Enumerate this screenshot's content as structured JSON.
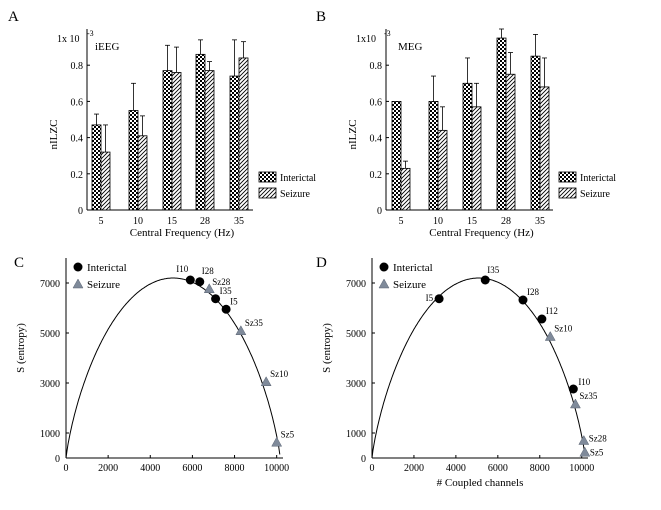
{
  "chart_data": [
    {
      "panel_label": "A",
      "type": "bar",
      "inset_label": "iEEG",
      "y_multiplier_label": "1x 10",
      "y_multiplier_exp": "-3",
      "xlabel": "Central Frequency (Hz)",
      "ylabel": "nILZC",
      "ylim": [
        0,
        1
      ],
      "yticks": [
        "0",
        "0.2",
        "0.4",
        "0.6",
        "0.8"
      ],
      "ytick_values": [
        0,
        0.2,
        0.4,
        0.6,
        0.8
      ],
      "categories": [
        "5",
        "10",
        "15",
        "28",
        "35"
      ],
      "series": [
        {
          "name": "Interictal",
          "values": [
            0.47,
            0.55,
            0.77,
            0.86,
            0.74
          ],
          "errors": [
            0.06,
            0.15,
            0.14,
            0.08,
            0.2
          ]
        },
        {
          "name": "Seizure",
          "values": [
            0.32,
            0.41,
            0.76,
            0.77,
            0.84
          ],
          "errors": [
            0.15,
            0.11,
            0.14,
            0.05,
            0.09
          ]
        }
      ]
    },
    {
      "panel_label": "B",
      "type": "bar",
      "inset_label": "MEG",
      "y_multiplier_label": "1x10",
      "y_multiplier_exp": "-3",
      "xlabel": "Central Frequency (Hz)",
      "ylabel": "nILZC",
      "ylim": [
        0,
        1
      ],
      "yticks": [
        "0",
        "0.2",
        "0.4",
        "0.6",
        "0.8"
      ],
      "ytick_values": [
        0,
        0.2,
        0.4,
        0.6,
        0.8
      ],
      "categories": [
        "5",
        "10",
        "15",
        "28",
        "35"
      ],
      "series": [
        {
          "name": "Interictal",
          "values": [
            0.6,
            0.6,
            0.7,
            0.95,
            0.85
          ],
          "errors": [
            0.0,
            0.14,
            0.14,
            0.05,
            0.12
          ]
        },
        {
          "name": "Seizure",
          "values": [
            0.23,
            0.44,
            0.57,
            0.75,
            0.68
          ],
          "errors": [
            0.04,
            0.13,
            0.13,
            0.12,
            0.16
          ]
        }
      ]
    },
    {
      "panel_label": "C",
      "type": "scatter",
      "xlabel": "",
      "ylabel": "S (entropy)",
      "xlim": [
        0,
        10300
      ],
      "ylim": [
        0,
        8000
      ],
      "xticks": [
        "0",
        "2000",
        "4000",
        "6000",
        "8000",
        "10000"
      ],
      "xtick_values": [
        0,
        2000,
        4000,
        6000,
        8000,
        10000
      ],
      "yticks": [
        "0",
        "1000",
        "3000",
        "5000",
        "7000"
      ],
      "ytick_values": [
        0,
        1000,
        3000,
        5000,
        7000
      ],
      "curve": {
        "n_total": 10170
      },
      "series": [
        {
          "name": "Interictal",
          "marker": "circle",
          "points": [
            {
              "label": "I10",
              "x": 5900,
              "y": 7120
            },
            {
              "label": "I28",
              "x": 6350,
              "y": 7050
            },
            {
              "label": "I35",
              "x": 7100,
              "y": 6370
            },
            {
              "label": "I5",
              "x": 7600,
              "y": 5950
            }
          ]
        },
        {
          "name": "Seizure",
          "marker": "triangle",
          "points": [
            {
              "label": "Sz28",
              "x": 6800,
              "y": 6770
            },
            {
              "label": "Sz35",
              "x": 8300,
              "y": 5090
            },
            {
              "label": "Sz10",
              "x": 9500,
              "y": 3050
            },
            {
              "label": "Sz5",
              "x": 10000,
              "y": 630
            }
          ]
        }
      ]
    },
    {
      "panel_label": "D",
      "type": "scatter",
      "xlabel": "# Coupled channels",
      "ylabel": "S (entropy)",
      "xlim": [
        0,
        10300
      ],
      "ylim": [
        0,
        8000
      ],
      "xticks": [
        "0",
        "2000",
        "4000",
        "6000",
        "8000",
        "10000"
      ],
      "xtick_values": [
        0,
        2000,
        4000,
        6000,
        8000,
        10000
      ],
      "yticks": [
        "0",
        "1000",
        "3000",
        "5000",
        "7000"
      ],
      "ytick_values": [
        0,
        1000,
        3000,
        5000,
        7000
      ],
      "curve": {
        "n_total": 10170
      },
      "series": [
        {
          "name": "Interictal",
          "marker": "circle",
          "points": [
            {
              "label": "I5",
              "x": 3200,
              "y": 6370
            },
            {
              "label": "I35",
              "x": 5400,
              "y": 7120
            },
            {
              "label": "I28",
              "x": 7200,
              "y": 6320
            },
            {
              "label": "I12",
              "x": 8100,
              "y": 5560
            },
            {
              "label": "I10",
              "x": 9600,
              "y": 2760
            }
          ]
        },
        {
          "name": "Seizure",
          "marker": "triangle",
          "points": [
            {
              "label": "Sz10",
              "x": 8500,
              "y": 4860
            },
            {
              "label": "Sz35",
              "x": 9700,
              "y": 2160
            },
            {
              "label": "Sz28",
              "x": 10100,
              "y": 700
            },
            {
              "label": "Sz5",
              "x": 10150,
              "y": 230
            }
          ]
        }
      ]
    }
  ]
}
